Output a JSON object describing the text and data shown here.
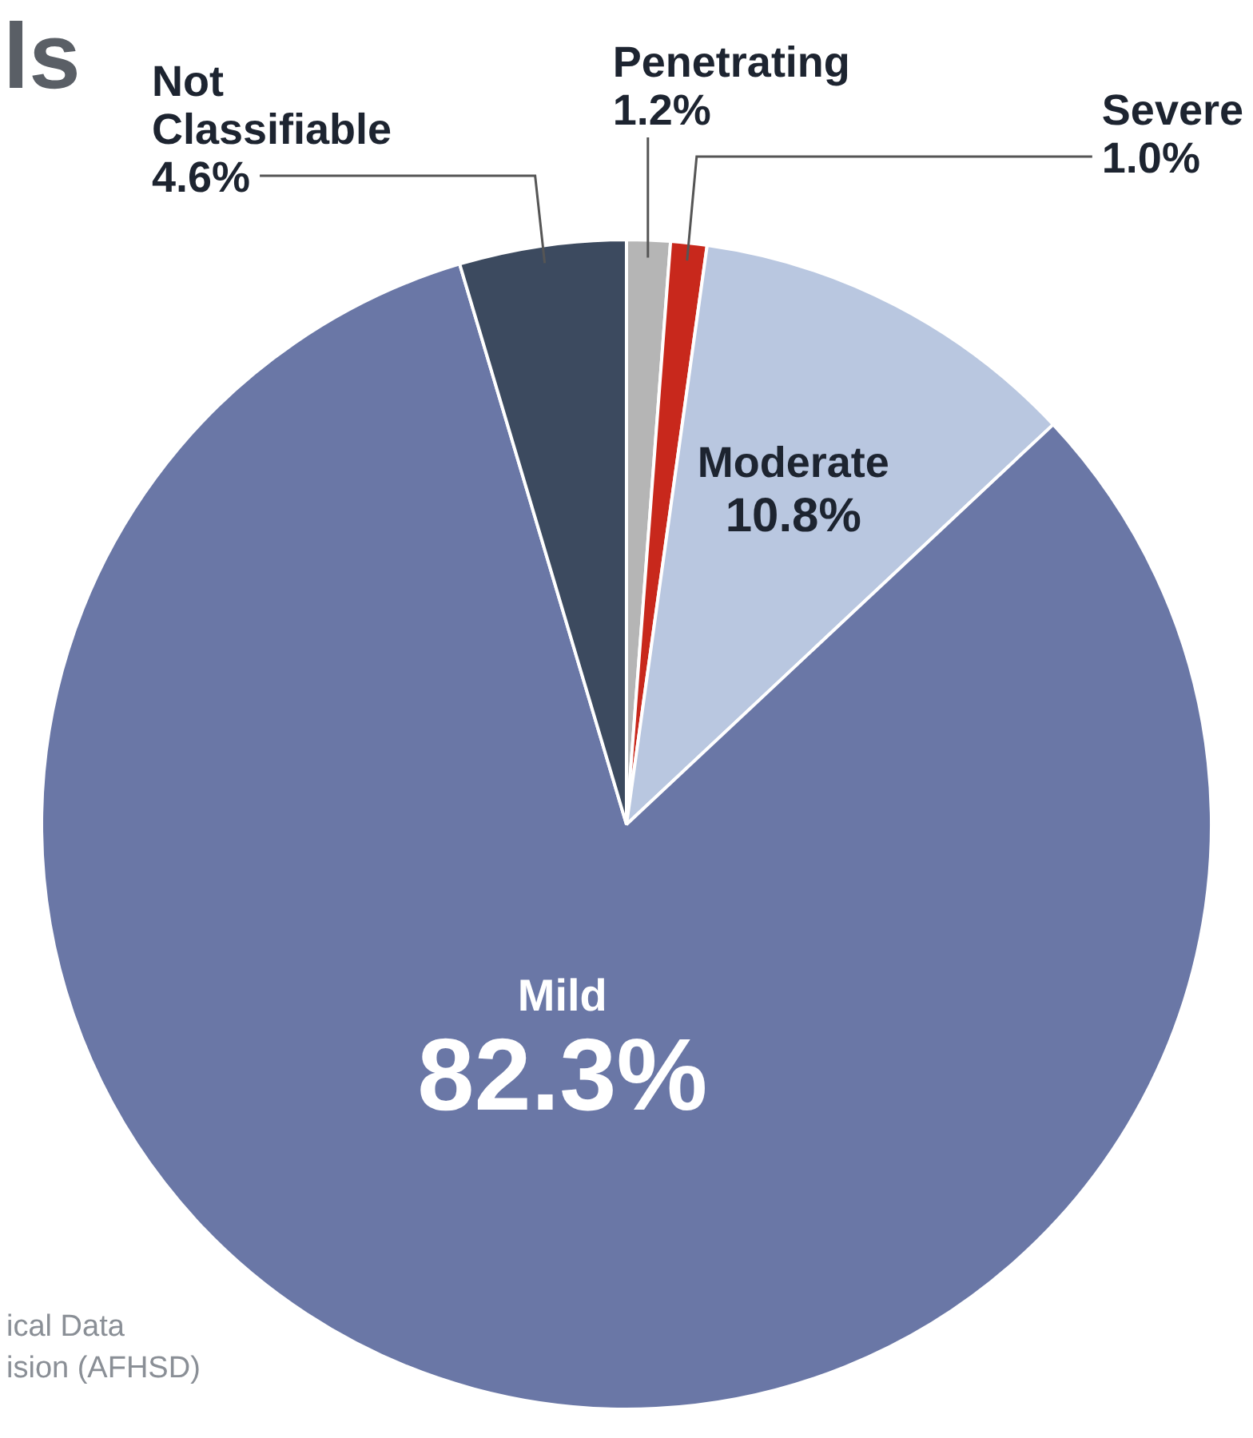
{
  "chart_data": {
    "type": "pie",
    "title": "ls",
    "categories": [
      "Penetrating",
      "Severe",
      "Moderate",
      "Mild",
      "Not Classifiable"
    ],
    "values": [
      1.2,
      1.0,
      10.8,
      82.3,
      4.6
    ],
    "value_labels": [
      "1.2%",
      "1.0%",
      "10.8%",
      "82.3%",
      "4.6%"
    ],
    "colors": [
      "#b5b5b5",
      "#c8281c",
      "#b9c7e0",
      "#6a77a6",
      "#3c4a5f"
    ],
    "annotations": [
      "ical Data",
      "ision (AFHSD)"
    ],
    "legend": false
  }
}
